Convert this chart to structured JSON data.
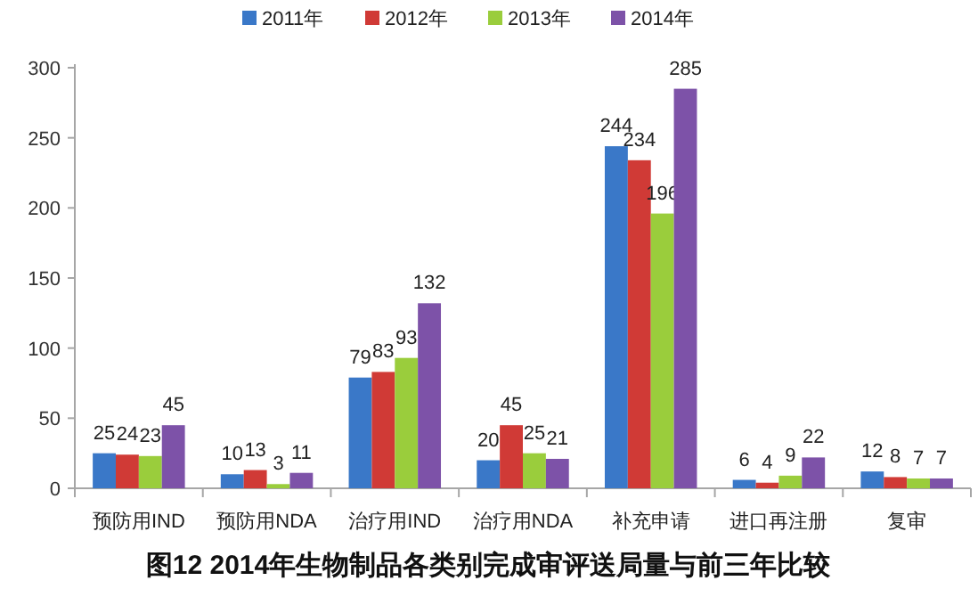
{
  "chart_data": {
    "type": "bar",
    "title": "图12 2014年生物制品各类别完成审评送局量与前三年比较",
    "categories": [
      "预防用IND",
      "预防用NDA",
      "治疗用IND",
      "治疗用NDA",
      "补充申请",
      "进口再注册",
      "复审"
    ],
    "series": [
      {
        "name": "2011年",
        "color": "#3a78c8",
        "values": [
          25,
          10,
          79,
          20,
          244,
          6,
          12
        ]
      },
      {
        "name": "2012年",
        "color": "#d03a36",
        "values": [
          24,
          13,
          83,
          45,
          234,
          4,
          8
        ]
      },
      {
        "name": "2013年",
        "color": "#9acd3c",
        "values": [
          23,
          3,
          93,
          25,
          196,
          9,
          7
        ]
      },
      {
        "name": "2014年",
        "color": "#7d52a8",
        "values": [
          45,
          11,
          132,
          21,
          285,
          22,
          7
        ]
      }
    ],
    "ylim": [
      0,
      300
    ],
    "yticks": [
      0,
      50,
      100,
      150,
      200,
      250,
      300
    ],
    "grid": false,
    "legend": "top",
    "data_labels": true
  }
}
